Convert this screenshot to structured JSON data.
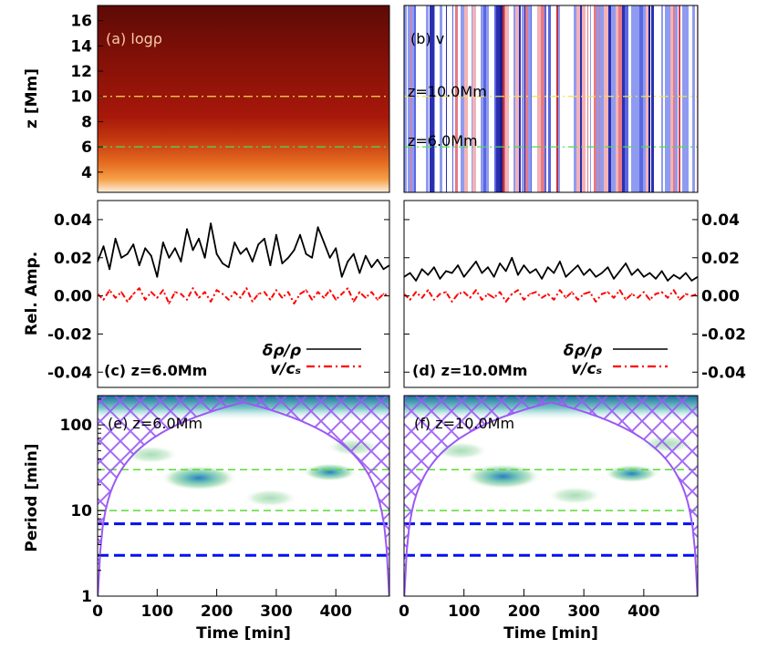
{
  "figure": {
    "xaxis_label": "Time [min]",
    "x_ticks": [
      "0",
      "100",
      "200",
      "300",
      "400"
    ],
    "x_tick_values": [
      0,
      100,
      200,
      300,
      400
    ],
    "x_range": [
      0,
      490
    ]
  },
  "colors": {
    "solid_line": "#000000",
    "dashdot_line": "#ff0000",
    "coi_hatch": "#9b59f5",
    "period_guide_green": "#55dd33",
    "period_guide_blue": "#0011ee",
    "level_line_yellow": "#f5e04a",
    "level_line_green": "#4fdb4f"
  },
  "chart_data": [
    {
      "id": "a",
      "type": "heatmap",
      "panel_label": "(a) logρ",
      "ylabel": "z [Mm]",
      "y_ticks": [
        "4",
        "6",
        "8",
        "10",
        "12",
        "14",
        "16"
      ],
      "y_tick_values": [
        4,
        6,
        8,
        10,
        12,
        14,
        16
      ],
      "ylim": [
        2.4,
        17.2
      ],
      "level_lines_Mm": [
        10.0,
        6.0
      ],
      "colormap": "dark red (top) to white (bottom), decreasing density with height"
    },
    {
      "id": "b",
      "type": "heatmap",
      "panel_label": "(b) v",
      "level_labels": [
        "z=10.0Mm",
        "z=6.0Mm"
      ],
      "level_lines_Mm": [
        10.0,
        6.0
      ],
      "colormap": "blue-white-red vertical stripes"
    },
    {
      "id": "c",
      "type": "line",
      "panel_label": "(c) z=6.0Mm",
      "ylabel": "Rel. Amp.",
      "y_ticks": [
        "-0.04",
        "-0.02",
        "0.00",
        "0.02",
        "0.04"
      ],
      "y_tick_values": [
        -0.04,
        -0.02,
        0.0,
        0.02,
        0.04
      ],
      "ylim": [
        -0.048,
        0.05
      ],
      "legend": [
        "δρ/ρ",
        "v/cₛ"
      ],
      "series": [
        {
          "name": "δρ/ρ",
          "style": "solid",
          "t": [
            0,
            10,
            20,
            30,
            40,
            50,
            60,
            70,
            80,
            90,
            100,
            110,
            120,
            130,
            140,
            150,
            160,
            170,
            180,
            190,
            200,
            210,
            220,
            230,
            240,
            250,
            260,
            270,
            280,
            290,
            300,
            310,
            320,
            330,
            340,
            350,
            360,
            370,
            380,
            390,
            400,
            410,
            420,
            430,
            440,
            450,
            460,
            470,
            480,
            490
          ],
          "values": [
            0.018,
            0.026,
            0.014,
            0.03,
            0.02,
            0.022,
            0.027,
            0.016,
            0.025,
            0.021,
            0.01,
            0.028,
            0.02,
            0.025,
            0.018,
            0.035,
            0.024,
            0.03,
            0.02,
            0.038,
            0.022,
            0.017,
            0.015,
            0.028,
            0.022,
            0.025,
            0.018,
            0.027,
            0.03,
            0.016,
            0.032,
            0.017,
            0.02,
            0.024,
            0.032,
            0.022,
            0.02,
            0.036,
            0.028,
            0.02,
            0.025,
            0.01,
            0.018,
            0.022,
            0.012,
            0.021,
            0.015,
            0.019,
            0.014,
            0.016
          ]
        },
        {
          "name": "v/cₛ",
          "style": "dashdot",
          "t": [
            0,
            10,
            20,
            30,
            40,
            50,
            60,
            70,
            80,
            90,
            100,
            110,
            120,
            130,
            140,
            150,
            160,
            170,
            180,
            190,
            200,
            210,
            220,
            230,
            240,
            250,
            260,
            270,
            280,
            290,
            300,
            310,
            320,
            330,
            340,
            350,
            360,
            370,
            380,
            390,
            400,
            410,
            420,
            430,
            440,
            450,
            460,
            470,
            480,
            490
          ],
          "values": [
            0.001,
            -0.002,
            0.003,
            -0.001,
            0.002,
            -0.003,
            0.001,
            0.004,
            -0.002,
            0.002,
            -0.001,
            0.003,
            -0.004,
            0.002,
            0.001,
            -0.002,
            0.004,
            -0.001,
            0.002,
            -0.003,
            0.003,
            0.001,
            -0.002,
            0.002,
            -0.001,
            0.004,
            -0.003,
            0.001,
            0.002,
            -0.002,
            0.003,
            -0.001,
            0.002,
            -0.004,
            0.001,
            0.003,
            -0.002,
            0.002,
            -0.001,
            0.003,
            -0.002,
            0.001,
            0.004,
            -0.003,
            0.002,
            -0.001,
            0.002,
            -0.002,
            0.001,
            0.0
          ]
        }
      ]
    },
    {
      "id": "d",
      "type": "line",
      "panel_label": "(d) z=10.0Mm",
      "y_ticks": [
        "-0.04",
        "-0.02",
        "0.00",
        "0.02",
        "0.04"
      ],
      "y_tick_values": [
        -0.04,
        -0.02,
        0.0,
        0.02,
        0.04
      ],
      "ylim": [
        -0.048,
        0.05
      ],
      "legend": [
        "δρ/ρ",
        "v/cₛ"
      ],
      "series": [
        {
          "name": "δρ/ρ",
          "style": "solid",
          "t": [
            0,
            10,
            20,
            30,
            40,
            50,
            60,
            70,
            80,
            90,
            100,
            110,
            120,
            130,
            140,
            150,
            160,
            170,
            180,
            190,
            200,
            210,
            220,
            230,
            240,
            250,
            260,
            270,
            280,
            290,
            300,
            310,
            320,
            330,
            340,
            350,
            360,
            370,
            380,
            390,
            400,
            410,
            420,
            430,
            440,
            450,
            460,
            470,
            480,
            490
          ],
          "values": [
            0.01,
            0.012,
            0.008,
            0.014,
            0.011,
            0.015,
            0.009,
            0.013,
            0.012,
            0.016,
            0.01,
            0.014,
            0.018,
            0.012,
            0.015,
            0.01,
            0.017,
            0.013,
            0.02,
            0.011,
            0.016,
            0.012,
            0.014,
            0.009,
            0.015,
            0.012,
            0.018,
            0.01,
            0.013,
            0.016,
            0.011,
            0.014,
            0.01,
            0.012,
            0.015,
            0.009,
            0.013,
            0.017,
            0.011,
            0.014,
            0.01,
            0.012,
            0.009,
            0.013,
            0.008,
            0.011,
            0.009,
            0.012,
            0.008,
            0.01
          ]
        },
        {
          "name": "v/cₛ",
          "style": "dashdot",
          "t": [
            0,
            10,
            20,
            30,
            40,
            50,
            60,
            70,
            80,
            90,
            100,
            110,
            120,
            130,
            140,
            150,
            160,
            170,
            180,
            190,
            200,
            210,
            220,
            230,
            240,
            250,
            260,
            270,
            280,
            290,
            300,
            310,
            320,
            330,
            340,
            350,
            360,
            370,
            380,
            390,
            400,
            410,
            420,
            430,
            440,
            450,
            460,
            470,
            480,
            490
          ],
          "values": [
            0.001,
            -0.002,
            0.002,
            -0.001,
            0.003,
            -0.002,
            0.001,
            0.002,
            -0.003,
            0.001,
            0.002,
            -0.001,
            0.003,
            -0.002,
            0.001,
            -0.001,
            0.002,
            -0.003,
            0.001,
            0.003,
            -0.002,
            0.001,
            0.002,
            -0.001,
            0.001,
            -0.002,
            0.003,
            -0.001,
            0.002,
            -0.002,
            0.001,
            0.002,
            -0.003,
            0.001,
            0.002,
            -0.001,
            0.003,
            -0.002,
            0.001,
            -0.001,
            0.002,
            -0.002,
            0.001,
            0.002,
            -0.001,
            0.003,
            -0.002,
            0.001,
            0.0,
            0.001
          ]
        }
      ]
    },
    {
      "id": "e",
      "type": "heatmap",
      "panel_label": "(e) z=6.0Mm",
      "ylabel": "Period [min]",
      "y_ticks": [
        "1",
        "10",
        "100"
      ],
      "y_tick_values": [
        1,
        10,
        100
      ],
      "ylim": [
        1,
        220
      ],
      "yscale": "log",
      "guide_periods_green": [
        30,
        10
      ],
      "guide_periods_blue": [
        7,
        3
      ],
      "power_blobs": [
        {
          "t": 170,
          "period": 24
        },
        {
          "t": 90,
          "period": 45
        },
        {
          "t": 290,
          "period": 14
        },
        {
          "t": 390,
          "period": 28
        },
        {
          "t": 430,
          "period": 55
        }
      ],
      "colormap": "white-green-blue wavelet power, cone of influence hatched"
    },
    {
      "id": "f",
      "type": "heatmap",
      "panel_label": "(f) z=10.0Mm",
      "ylim": [
        1,
        220
      ],
      "yscale": "log",
      "guide_periods_green": [
        30,
        10
      ],
      "guide_periods_blue": [
        7,
        3
      ],
      "power_blobs": [
        {
          "t": 165,
          "period": 25
        },
        {
          "t": 95,
          "period": 50
        },
        {
          "t": 285,
          "period": 15
        },
        {
          "t": 380,
          "period": 27
        },
        {
          "t": 440,
          "period": 60
        }
      ],
      "colormap": "white-green-blue wavelet power, cone of influence hatched"
    }
  ]
}
